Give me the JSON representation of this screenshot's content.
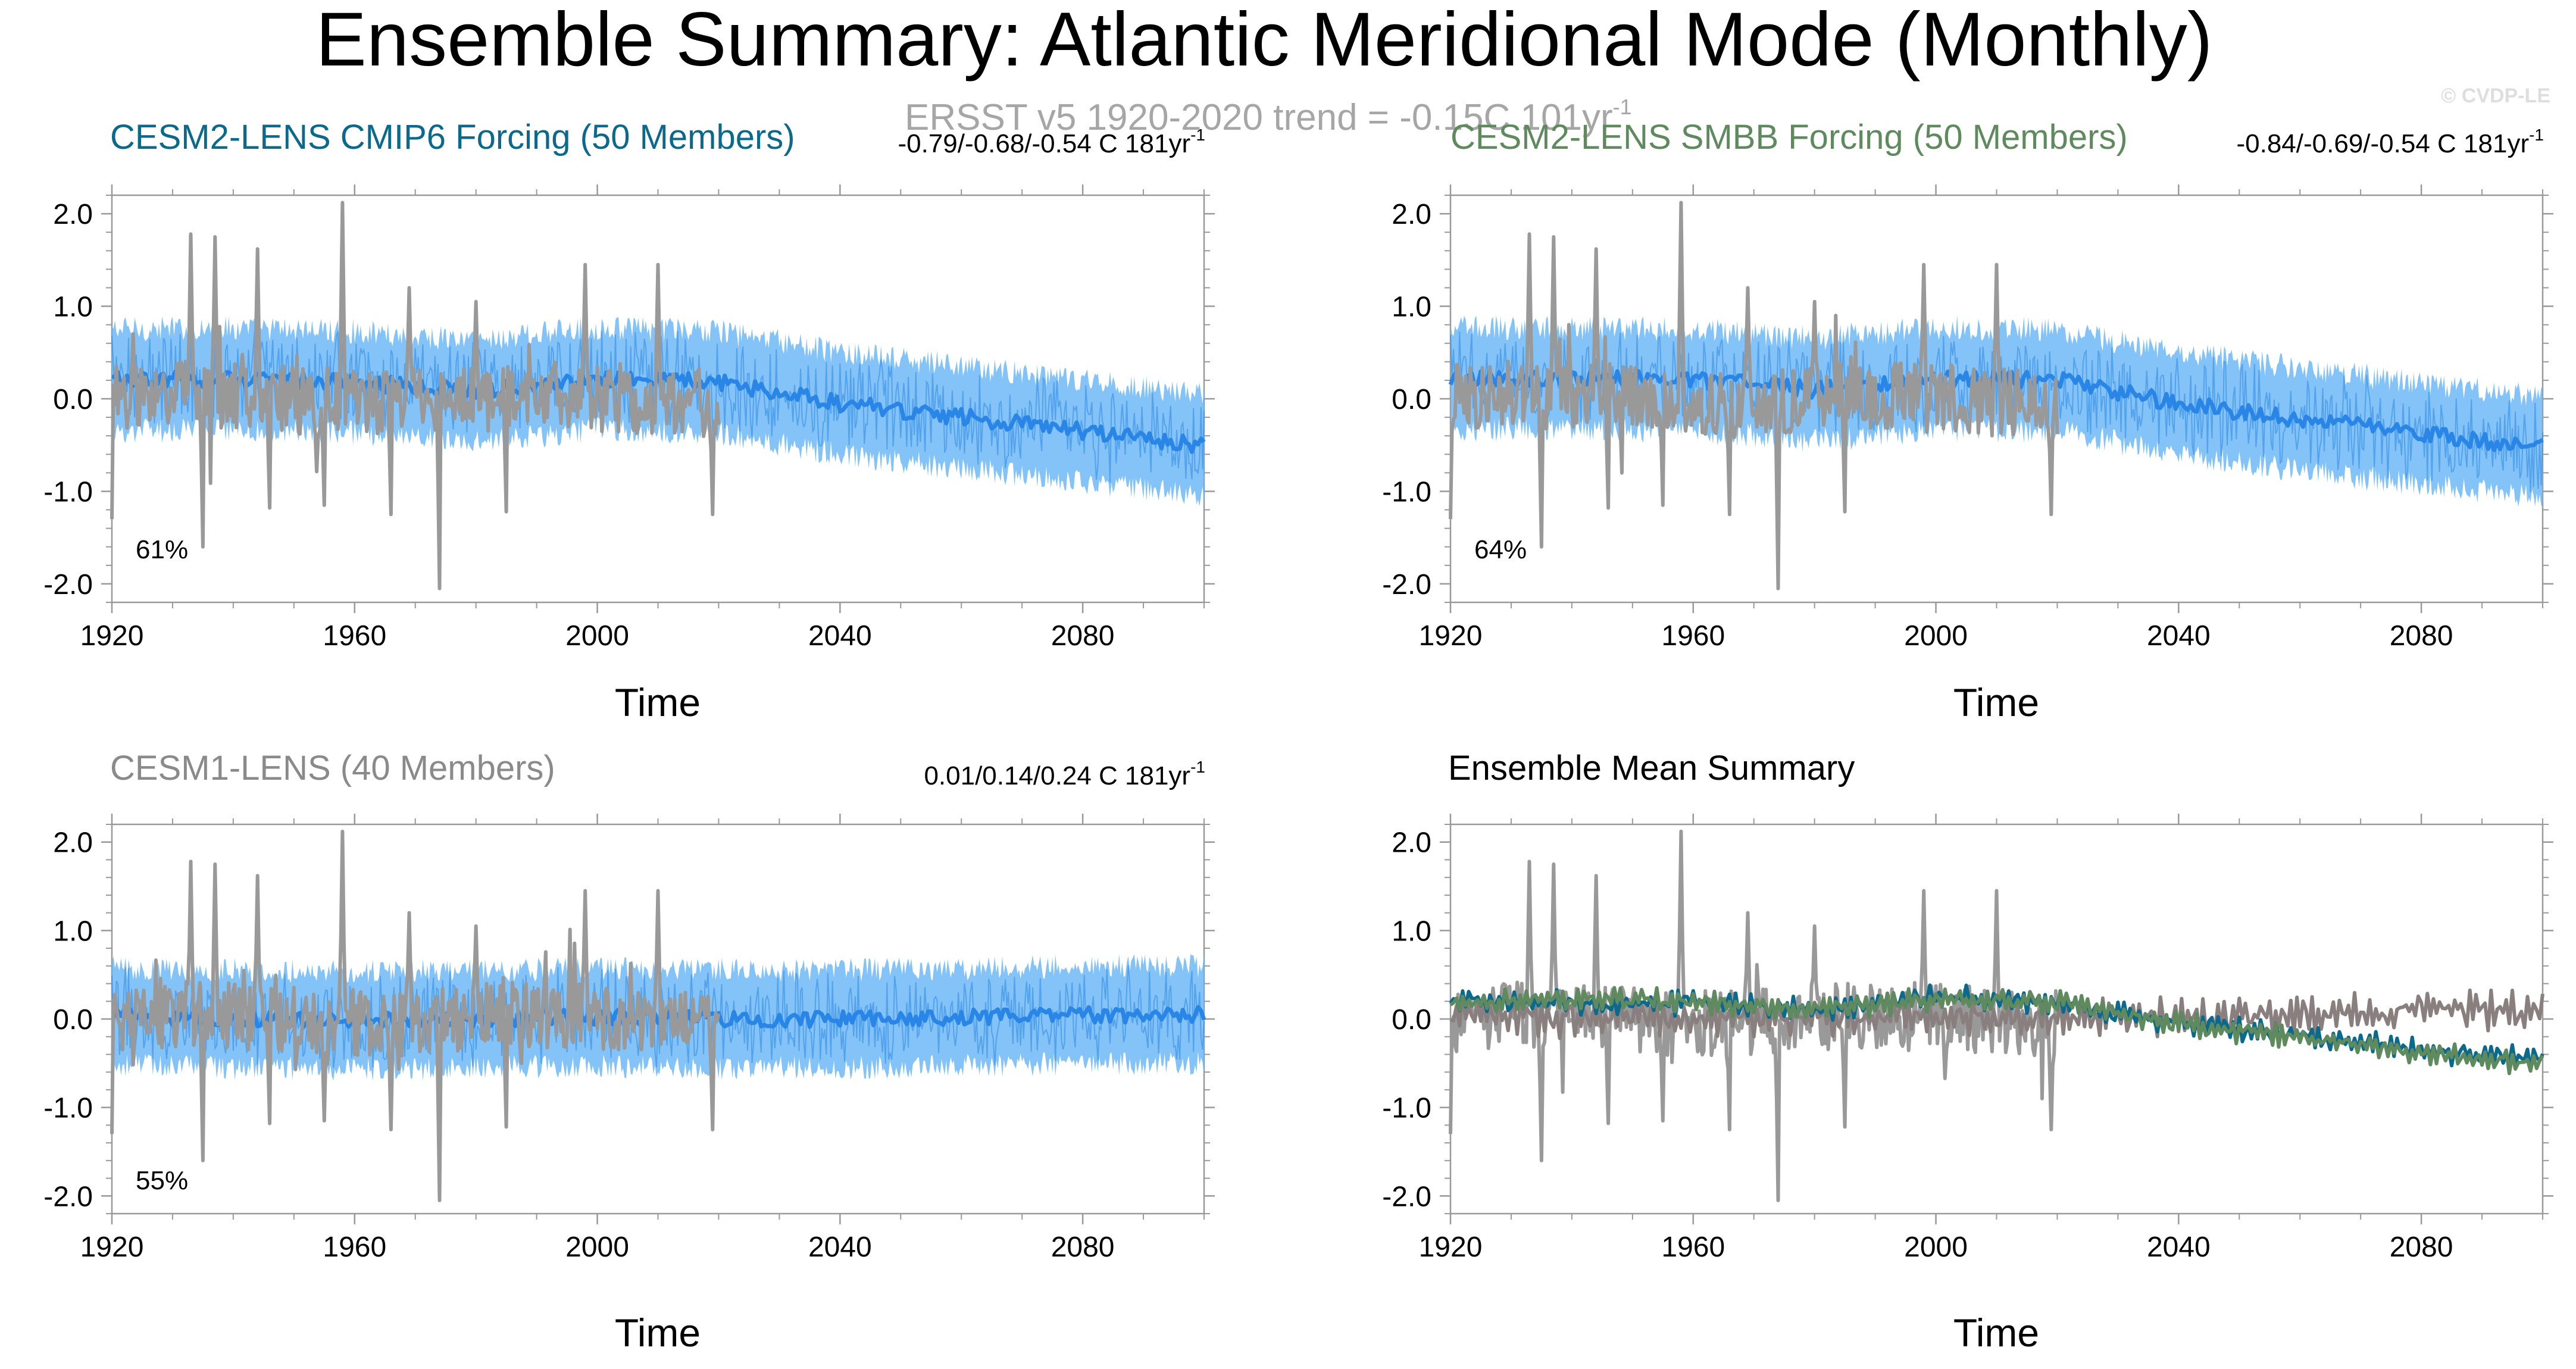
{
  "figure": {
    "title": "Ensemble Summary: Atlantic Meridional Mode (Monthly)",
    "subtitle": "ERSST v5 1920-2020 trend = -0.15C 101yr",
    "subtitle_sup": "-1",
    "watermark": "© CVDP-LE"
  },
  "colors": {
    "obs": "#999999",
    "ens_mean": "#2a86e6",
    "ens_spread": "#65b4f5",
    "cesm2_cmip6": "#0b6a8c",
    "cesm2_smbb": "#5e8a5e",
    "cesm1": "#8a8a8a",
    "mean_cesm1": "#8a7f7f"
  },
  "chart_data": [
    {
      "id": "cesm2_cmip6",
      "type": "line",
      "title": "CESM2-LENS CMIP6 Forcing (50 Members)",
      "trend_label": "-0.79/-0.68/-0.54 C 181yr",
      "trend_sup": "-1",
      "percent_label": "61%",
      "xlabel": "Time",
      "ylabel": "",
      "xlim": [
        1920,
        2100
      ],
      "ylim": [
        -2.2,
        2.2
      ],
      "xticks": [
        1920,
        1960,
        2000,
        2040,
        2080
      ],
      "xtick_labels": [
        "1920",
        "1960",
        "2000",
        "2040",
        "2080"
      ],
      "yticks": [
        2.0,
        1.0,
        0.0,
        -1.0,
        -2.0
      ],
      "ytick_labels": [
        "2.0",
        "1.0",
        "0.0",
        "-1.0",
        "-2.0"
      ],
      "ensemble": {
        "mean_x": [
          1920,
          1940,
          1960,
          1980,
          2000,
          2020,
          2040,
          2060,
          2080,
          2100
        ],
        "mean_y": [
          0.2,
          0.22,
          0.18,
          0.08,
          0.22,
          0.18,
          -0.05,
          -0.2,
          -0.35,
          -0.5
        ],
        "spread_halfwidth": 0.55
      },
      "observed": {
        "name": "ERSST v5",
        "x_range": [
          1920,
          2020
        ],
        "peaks": [
          [
            1933,
            1.78
          ],
          [
            1937,
            1.75
          ],
          [
            1944,
            1.62
          ],
          [
            1958,
            2.12
          ],
          [
            1969,
            1.2
          ],
          [
            1980,
            1.05
          ],
          [
            1998,
            1.45
          ],
          [
            2010,
            1.45
          ]
        ],
        "troughs": [
          [
            1920,
            -1.3
          ],
          [
            1935,
            -1.6
          ],
          [
            1946,
            -1.18
          ],
          [
            1955,
            -1.15
          ],
          [
            1966,
            -1.25
          ],
          [
            1974,
            -2.05
          ],
          [
            1985,
            -1.22
          ],
          [
            2019,
            -1.25
          ]
        ]
      }
    },
    {
      "id": "cesm2_smbb",
      "type": "line",
      "title": "CESM2-LENS SMBB Forcing (50 Members)",
      "trend_label": "-0.84/-0.69/-0.54 C 181yr",
      "trend_sup": "-1",
      "percent_label": "64%",
      "xlabel": "Time",
      "ylabel": "",
      "xlim": [
        1920,
        2100
      ],
      "ylim": [
        -2.2,
        2.2
      ],
      "xticks": [
        1920,
        1960,
        2000,
        2040,
        2080
      ],
      "xtick_labels": [
        "1920",
        "1960",
        "2000",
        "2040",
        "2080"
      ],
      "yticks": [
        2.0,
        1.0,
        0.0,
        -1.0,
        -2.0
      ],
      "ytick_labels": [
        "2.0",
        "1.0",
        "0.0",
        "-1.0",
        "-2.0"
      ],
      "ensemble": {
        "mean_x": [
          1920,
          1940,
          1960,
          1980,
          2000,
          2020,
          2040,
          2060,
          2080,
          2100
        ],
        "mean_y": [
          0.22,
          0.22,
          0.2,
          0.1,
          0.22,
          0.2,
          -0.05,
          -0.22,
          -0.38,
          -0.52
        ],
        "spread_halfwidth": 0.55
      },
      "observed": {
        "name": "ERSST v5",
        "x_range": [
          1920,
          2020
        ],
        "peaks": [
          [
            1933,
            1.78
          ],
          [
            1937,
            1.75
          ],
          [
            1944,
            1.62
          ],
          [
            1958,
            2.12
          ],
          [
            1969,
            1.2
          ],
          [
            1980,
            1.05
          ],
          [
            1998,
            1.45
          ],
          [
            2010,
            1.45
          ]
        ],
        "troughs": [
          [
            1920,
            -1.3
          ],
          [
            1935,
            -1.6
          ],
          [
            1946,
            -1.18
          ],
          [
            1955,
            -1.15
          ],
          [
            1966,
            -1.25
          ],
          [
            1974,
            -2.05
          ],
          [
            1985,
            -1.22
          ],
          [
            2019,
            -1.25
          ]
        ]
      }
    },
    {
      "id": "cesm1",
      "type": "line",
      "title": "CESM1-LENS (40 Members)",
      "trend_label": "0.01/0.14/0.24 C 181yr",
      "trend_sup": "-1",
      "percent_label": "55%",
      "xlabel": "Time",
      "ylabel": "",
      "xlim": [
        1920,
        2100
      ],
      "ylim": [
        -2.2,
        2.2
      ],
      "xticks": [
        1920,
        1960,
        2000,
        2040,
        2080
      ],
      "xtick_labels": [
        "1920",
        "1960",
        "2000",
        "2040",
        "2080"
      ],
      "yticks": [
        2.0,
        1.0,
        0.0,
        -1.0,
        -2.0
      ],
      "ytick_labels": [
        "2.0",
        "1.0",
        "0.0",
        "-1.0",
        "-2.0"
      ],
      "ensemble": {
        "mean_x": [
          1920,
          1940,
          1960,
          1980,
          2000,
          2020,
          2040,
          2060,
          2080,
          2100
        ],
        "mean_y": [
          0.03,
          0.0,
          -0.02,
          0.0,
          0.02,
          0.0,
          0.0,
          0.02,
          0.05,
          0.05
        ],
        "spread_halfwidth": 0.55
      },
      "observed": {
        "name": "ERSST v5",
        "x_range": [
          1920,
          2020
        ],
        "peaks": [
          [
            1933,
            1.78
          ],
          [
            1937,
            1.75
          ],
          [
            1944,
            1.62
          ],
          [
            1958,
            2.12
          ],
          [
            1969,
            1.2
          ],
          [
            1980,
            1.05
          ],
          [
            1998,
            1.45
          ],
          [
            2010,
            1.45
          ]
        ],
        "troughs": [
          [
            1920,
            -1.3
          ],
          [
            1935,
            -1.6
          ],
          [
            1946,
            -1.18
          ],
          [
            1955,
            -1.15
          ],
          [
            1966,
            -1.25
          ],
          [
            1974,
            -2.05
          ],
          [
            1985,
            -1.22
          ],
          [
            2019,
            -1.25
          ]
        ]
      }
    },
    {
      "id": "ensemble_mean_summary",
      "type": "line",
      "title": "Ensemble Mean Summary",
      "xlabel": "Time",
      "ylabel": "",
      "xlim": [
        1920,
        2100
      ],
      "ylim": [
        -2.2,
        2.2
      ],
      "xticks": [
        1920,
        1960,
        2000,
        2040,
        2080
      ],
      "xtick_labels": [
        "1920",
        "1960",
        "2000",
        "2040",
        "2080"
      ],
      "yticks": [
        2.0,
        1.0,
        0.0,
        -1.0,
        -2.0
      ],
      "ytick_labels": [
        "2.0",
        "1.0",
        "0.0",
        "-1.0",
        "-2.0"
      ],
      "series": [
        {
          "name": "CESM2-LENS CMIP6 Forcing",
          "x": [
            1920,
            1940,
            1960,
            1980,
            2000,
            2020,
            2040,
            2060,
            2080,
            2100
          ],
          "y": [
            0.22,
            0.18,
            0.18,
            0.1,
            0.25,
            0.18,
            -0.05,
            -0.2,
            -0.35,
            -0.45
          ]
        },
        {
          "name": "CESM2-LENS SMBB Forcing",
          "x": [
            1920,
            1940,
            1960,
            1980,
            2000,
            2020,
            2040,
            2060,
            2080,
            2100
          ],
          "y": [
            0.2,
            0.22,
            0.2,
            0.12,
            0.22,
            0.2,
            -0.05,
            -0.22,
            -0.38,
            -0.5
          ]
        },
        {
          "name": "CESM1-LENS",
          "x": [
            1920,
            1940,
            1960,
            1980,
            2000,
            2020,
            2040,
            2060,
            2080,
            2100
          ],
          "y": [
            0.05,
            0.02,
            0.0,
            0.02,
            0.02,
            0.0,
            0.02,
            0.05,
            0.1,
            0.1
          ]
        }
      ],
      "observed": {
        "name": "ERSST v5",
        "x_range": [
          1920,
          2020
        ],
        "peaks": [
          [
            1933,
            1.78
          ],
          [
            1937,
            1.75
          ],
          [
            1944,
            1.62
          ],
          [
            1958,
            2.12
          ],
          [
            1969,
            1.2
          ],
          [
            1980,
            1.05
          ],
          [
            1998,
            1.45
          ],
          [
            2010,
            1.45
          ]
        ],
        "troughs": [
          [
            1920,
            -1.3
          ],
          [
            1935,
            -1.6
          ],
          [
            1946,
            -1.18
          ],
          [
            1955,
            -1.15
          ],
          [
            1966,
            -1.25
          ],
          [
            1974,
            -2.05
          ],
          [
            1985,
            -1.22
          ],
          [
            2019,
            -1.25
          ]
        ]
      }
    }
  ]
}
